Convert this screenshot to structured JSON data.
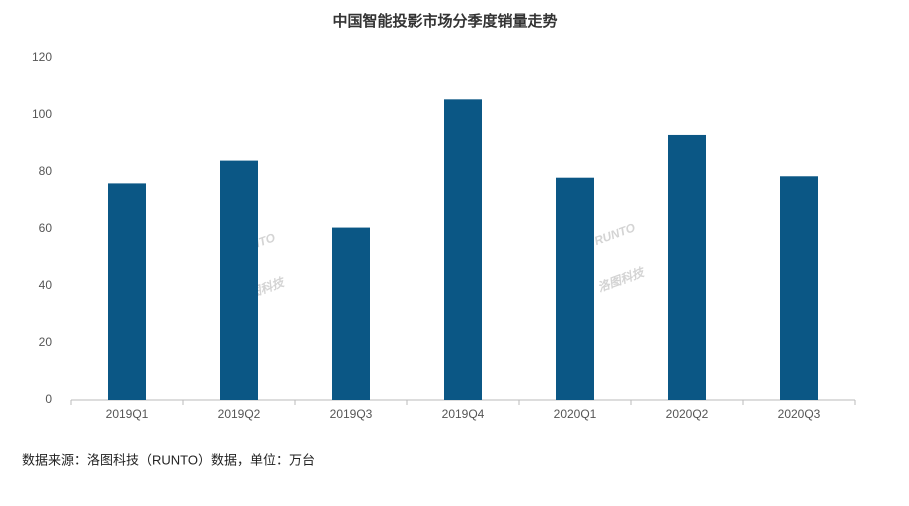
{
  "chart_data": {
    "type": "bar",
    "title": "中国智能投影市场分季度销量走势",
    "categories": [
      "2019Q1",
      "2019Q2",
      "2019Q3",
      "2019Q4",
      "2020Q1",
      "2020Q2",
      "2020Q3"
    ],
    "values": [
      76,
      84,
      60.5,
      105.5,
      78,
      93,
      78.5
    ],
    "color": "#0b5785",
    "ylim": [
      0,
      120
    ],
    "yticks": [
      0,
      20,
      40,
      60,
      80,
      100,
      120
    ],
    "grid": false,
    "watermark": [
      "RUNTO",
      "洛图科技"
    ],
    "source": "数据来源：洛图科技（RUNTO）数据，单位：万台"
  }
}
